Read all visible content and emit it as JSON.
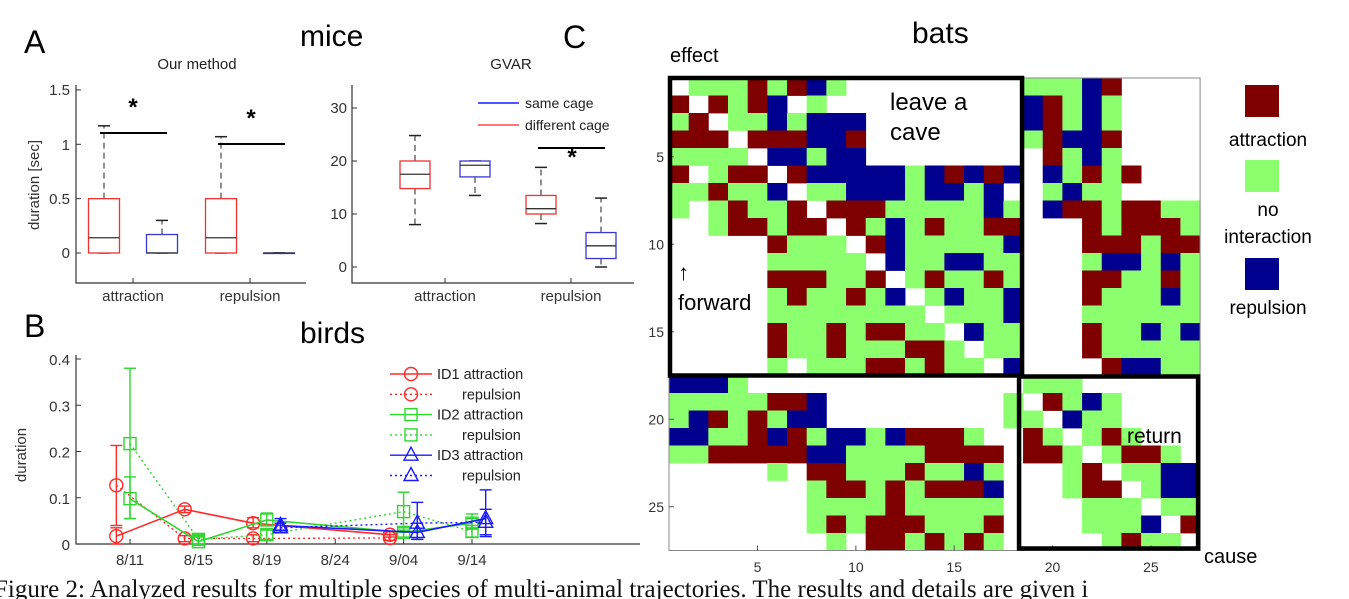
{
  "panel_labels": {
    "a": "A",
    "b": "B",
    "c": "C"
  },
  "section_titles": {
    "mice": "mice",
    "birds": "birds",
    "bats": "bats"
  },
  "caption": "Figure 2:  Analyzed results for multiple species of multi-animal trajectories. The results and details are given i",
  "colors": {
    "attraction": "#7f0000",
    "no_interaction": "#8cff6e",
    "repulsion": "#00008f",
    "red": "#ff2a2a",
    "green": "#2fd62f",
    "blue": "#1a1aff",
    "box_red": "#ee3333",
    "box_blue": "#3838d0"
  },
  "chart_data": [
    {
      "type": "boxplot",
      "title": "Our method",
      "ylabel": "duration [sec]",
      "categories": [
        "attraction",
        "repulsion"
      ],
      "yticks": [
        "0",
        "0.5",
        "1",
        "1.5"
      ],
      "ytick_values": [
        0,
        0.5,
        1,
        1.5
      ],
      "ylim": [
        -0.28,
        1.57
      ],
      "series": [
        {
          "group": "different cage",
          "color": "red",
          "boxes": [
            {
              "min": 0,
              "q1": 0,
              "median": 0.14,
              "q3": 0.5,
              "max": 1.17
            },
            {
              "min": 0,
              "q1": 0,
              "median": 0.14,
              "q3": 0.5,
              "max": 1.07
            }
          ]
        },
        {
          "group": "same cage",
          "color": "blue",
          "boxes": [
            {
              "min": 0,
              "q1": 0,
              "median": 0,
              "q3": 0.17,
              "max": 0.3
            },
            {
              "min": 0,
              "q1": 0,
              "median": 0,
              "q3": 0,
              "max": 0
            }
          ]
        }
      ],
      "significance": [
        {
          "label": "*",
          "category": "attraction"
        },
        {
          "label": "*",
          "category": "repulsion"
        }
      ]
    },
    {
      "type": "boxplot",
      "title": "GVAR",
      "categories": [
        "attraction",
        "repulsion"
      ],
      "yticks": [
        "0",
        "10",
        "20",
        "30"
      ],
      "ytick_values": [
        0,
        10,
        20,
        30
      ],
      "ylim": [
        -3,
        33
      ],
      "legend": [
        {
          "label": "same cage",
          "color": "blue"
        },
        {
          "label": "different cage",
          "color": "red"
        }
      ],
      "legend_position": "top-right",
      "series": [
        {
          "group": "different cage",
          "color": "red",
          "boxes": [
            {
              "min": 8,
              "q1": 14.8,
              "median": 17.5,
              "q3": 20,
              "max": 24.8
            },
            {
              "min": 8.2,
              "q1": 10,
              "median": 11,
              "q3": 13.5,
              "max": 18.8
            }
          ]
        },
        {
          "group": "same cage",
          "color": "blue",
          "boxes": [
            {
              "min": 13.5,
              "q1": 17,
              "median": 19.2,
              "q3": 20,
              "max": 20
            },
            {
              "min": 0,
              "q1": 1.6,
              "median": 4,
              "q3": 6.5,
              "max": 13
            }
          ]
        }
      ],
      "significance": [
        {
          "label": "*",
          "category": "repulsion"
        }
      ]
    },
    {
      "type": "line",
      "ylabel": "duration",
      "categories": [
        "8/11",
        "8/15",
        "8/19",
        "8/24",
        "9/04",
        "9/14"
      ],
      "yticks": [
        "0",
        "0.1",
        "0.2",
        "0.3",
        "0.4"
      ],
      "ytick_values": [
        0,
        0.1,
        0.2,
        0.3,
        0.4
      ],
      "ylim": [
        0,
        0.4
      ],
      "legend_position": "top-right",
      "series": [
        {
          "name": "ID1 attraction",
          "color": "red",
          "marker": "circle",
          "style": "solid",
          "offset": -0.2,
          "x": [
            "8/11",
            "8/15",
            "8/19",
            "9/04"
          ],
          "y": [
            0.017,
            0.075,
            0.045,
            0.02
          ],
          "err": [
            [
              0,
              0.035
            ],
            [
              0.068,
              0.082
            ],
            [
              0.035,
              0.057
            ],
            [
              0.015,
              0.027
            ]
          ]
        },
        {
          "name": "repulsion",
          "color": "red",
          "marker": "circle",
          "style": "dotted",
          "offset": -0.2,
          "x": [
            "8/11",
            "8/15",
            "8/19",
            "9/04"
          ],
          "y": [
            0.127,
            0.012,
            0.012,
            0.013
          ],
          "err": [
            [
              0.04,
              0.213
            ],
            [
              0.005,
              0.018
            ],
            [
              0.005,
              0.02
            ],
            [
              0.008,
              0.02
            ]
          ]
        },
        {
          "name": "ID2 attraction",
          "color": "green",
          "marker": "square",
          "style": "solid",
          "offset": 0,
          "x": [
            "8/11",
            "8/15",
            "8/19",
            "9/04",
            "9/14"
          ],
          "y": [
            0.098,
            0.005,
            0.052,
            0.025,
            0.045
          ],
          "err": [
            [
              0.055,
              0.145
            ],
            [
              0,
              0.015
            ],
            [
              0.04,
              0.067
            ],
            [
              0.015,
              0.035
            ],
            [
              0.035,
              0.055
            ]
          ]
        },
        {
          "name": "repulsion",
          "color": "green",
          "marker": "square",
          "style": "dotted",
          "offset": 0,
          "x": [
            "8/11",
            "8/15",
            "8/19",
            "9/04",
            "9/14"
          ],
          "y": [
            0.217,
            0.01,
            0.02,
            0.07,
            0.027
          ],
          "err": [
            [
              0.055,
              0.38
            ],
            [
              0,
              0.02
            ],
            [
              0.01,
              0.03
            ],
            [
              0.03,
              0.112
            ],
            [
              0.015,
              0.065
            ]
          ]
        },
        {
          "name": "ID3 attraction",
          "color": "blue",
          "marker": "triangle",
          "style": "solid",
          "offset": 0.2,
          "x": [
            "8/19",
            "9/04",
            "9/14"
          ],
          "y": [
            0.04,
            0.025,
            0.055
          ],
          "err": [
            [
              0.03,
              0.055
            ],
            [
              0.01,
              0.045
            ],
            [
              0.016,
              0.117
            ]
          ]
        },
        {
          "name": "repulsion",
          "color": "blue",
          "marker": "triangle",
          "style": "dotted",
          "offset": 0.2,
          "x": [
            "8/19",
            "9/04",
            "9/14"
          ],
          "y": [
            0.035,
            0.045,
            0.047
          ],
          "err": [
            [
              0.025,
              0.045
            ],
            [
              0.01,
              0.09
            ],
            [
              0.02,
              0.075
            ]
          ]
        }
      ]
    },
    {
      "type": "heatmap",
      "xlabel": "cause",
      "ylabel": "effect",
      "xticks": [
        "5",
        "10",
        "15",
        "20",
        "25"
      ],
      "yticks": [
        "5",
        "10",
        "15",
        "20",
        "25"
      ],
      "tick_values": [
        5,
        10,
        15,
        20,
        25
      ],
      "size": 27,
      "legend": [
        {
          "key": "R",
          "label": "attraction",
          "lines": [
            "attraction"
          ]
        },
        {
          "key": "G",
          "label": "no interaction",
          "lines": [
            "no",
            "interaction"
          ]
        },
        {
          "key": "B",
          "label": "repulsion",
          "lines": [
            "repulsion"
          ]
        }
      ],
      "cell_codes": {
        "R": "attraction",
        "G": "no interaction",
        "B": "repulsion",
        "W": "none"
      },
      "annotations": {
        "leave": [
          "leave a",
          "cave"
        ],
        "forward_arrow": "↑",
        "forward": "forward",
        "return": "return"
      },
      "highlight_blocks": [
        {
          "rows": [
            1,
            17
          ],
          "cols": [
            1,
            18
          ]
        },
        {
          "rows": [
            18,
            27
          ],
          "cols": [
            19,
            27
          ]
        }
      ],
      "rows": [
        "WGGGRGRBGWWWWWWWWWGGGBRWWWW",
        "RWRGRBWGWWWWWWWWWWBRGBGWWWW",
        "GRWGGBGBBBWWWWWWWWBRGBGWWWW",
        "RRRWRRRBBRWWWWWWWWGRBBRWWWW",
        "GGGGWBBGBBWWWWWWWWWRGBGWWWW",
        "RWGRRWRBBBBBGBRBRBWBGRGRWWW",
        "GGRGGBWGGBBBGBBGBWWGBGGWWWW",
        "GWGRGGRWRRRGGGGGBGWBRRGRRGG",
        "WWGRRGRRWRGBGRGGRRWWWRGRRRG",
        "WWWWWRGGGWRBGGGGGBWWWRRRGRR",
        "WWWWWGGGGGWBGGBBGGWWWGBBGBG",
        "WWWWWRRRGGRWGRGGRGWWWRRGGRG",
        "WWWWWGRGGRGBWGBGGBWWWRGGGBG",
        "WWWWWGGGGGGGGWGGGBWWWGGGGGG",
        "WWWWWRGGRGRRGGWBGGWWWRGGBGB",
        "WWWWWRGGRGGGRRGWGGWWWRGGGGG",
        "WWWWWGWGGGRRGRGGWBWWWWRBBGG",
        "BBBGWWWWWWWWWWWWWWGGGWWWWWW",
        "GGGGGRRBWWWWWWWWWGWRGBGWWWW",
        "GBRGRGBBWWWWWWWWWGGWBGGWWWW",
        "BBGGRBRGBBGBRRRGWWRGWGRGWWW",
        "GGRRRRRBBGGGGRRRRWRRGWGRRGW",
        "WWWWWGWRRGGGRGGBGWWWGRWGGBB",
        "WWWWWWWGRRGRGRRRBWWWGRRWGBB",
        "WWWWWWWGGGGRGGGGGWWWWGGGWGG",
        "WWWWWWWGRGRRRGGGRWWWWGGGBWR",
        "WWWWWWWWGWRRGRGRGWWWWWGRGGW"
      ]
    }
  ]
}
